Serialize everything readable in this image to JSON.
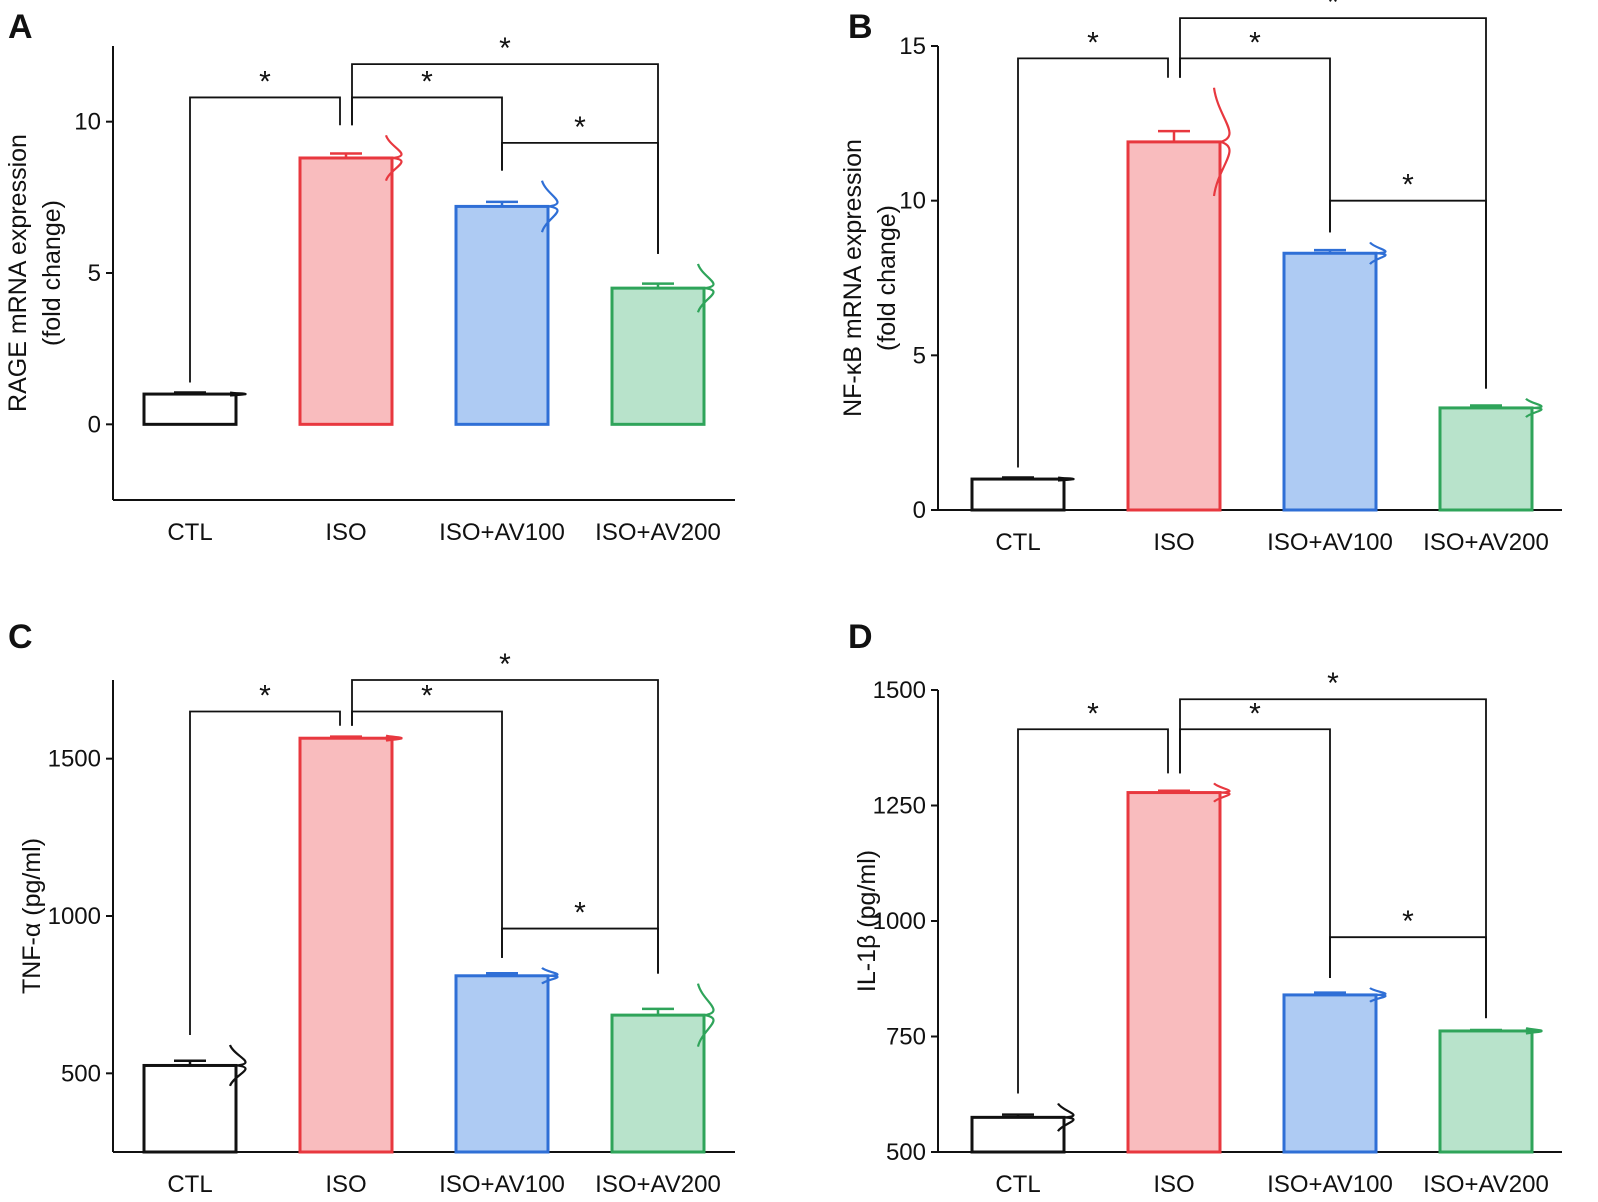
{
  "figure": {
    "colors": {
      "axis": "#111111",
      "series_stroke": [
        "#111111",
        "#e8383f",
        "#2f6fd6",
        "#2fa45a"
      ],
      "series_fill": [
        "#ffffff",
        "#f9bcbe",
        "#aecbf3",
        "#b8e3cb"
      ]
    }
  },
  "chart_data": [
    {
      "type": "bar",
      "panel": "A",
      "categories": [
        "CTL",
        "ISO",
        "ISO+AV100",
        "ISO+AV200"
      ],
      "values": [
        1.0,
        8.8,
        7.2,
        4.5
      ],
      "errors": [
        0.05,
        0.15,
        0.15,
        0.15
      ],
      "dist_halfwidth": [
        0.05,
        0.75,
        0.85,
        0.8
      ],
      "ylabel_line1": "RAGE mRNA expression",
      "ylabel_line2": "(fold change)",
      "ylim": [
        -2.5,
        12.5
      ],
      "yticks": [
        0,
        5,
        10
      ],
      "ytick_labels": [
        "0",
        "5",
        "10"
      ],
      "significance": [
        {
          "from": 0,
          "to": 1,
          "level": 10.8,
          "label": "*"
        },
        {
          "from": 1,
          "to": 2,
          "level": 10.8,
          "label": "*"
        },
        {
          "from": 1,
          "to": 3,
          "level": 11.9,
          "label": "*"
        },
        {
          "from": 2,
          "to": 3,
          "level": 9.3,
          "label": "*"
        }
      ]
    },
    {
      "type": "bar",
      "panel": "B",
      "categories": [
        "CTL",
        "ISO",
        "ISO+AV100",
        "ISO+AV200"
      ],
      "values": [
        1.0,
        11.9,
        8.3,
        3.3
      ],
      "errors": [
        0.05,
        0.35,
        0.1,
        0.08
      ],
      "dist_halfwidth": [
        0.05,
        1.75,
        0.35,
        0.3
      ],
      "ylabel_line1": "NF-κB mRNA expression",
      "ylabel_line2": "(fold change)",
      "ylim": [
        0,
        15
      ],
      "yticks": [
        0,
        5,
        10,
        15
      ],
      "ytick_labels": [
        "0",
        "5",
        "10",
        "15"
      ],
      "significance": [
        {
          "from": 0,
          "to": 1,
          "level": 14.6,
          "label": "*"
        },
        {
          "from": 1,
          "to": 2,
          "level": 14.6,
          "label": "*"
        },
        {
          "from": 1,
          "to": 3,
          "level": 15.9,
          "label": "*"
        },
        {
          "from": 2,
          "to": 3,
          "level": 10.0,
          "label": "*"
        }
      ]
    },
    {
      "type": "bar",
      "panel": "C",
      "categories": [
        "CTL",
        "ISO",
        "ISO+AV100",
        "ISO+AV200"
      ],
      "values": [
        525,
        1565,
        810,
        685
      ],
      "errors": [
        15,
        5,
        8,
        20
      ],
      "dist_halfwidth": [
        65,
        8,
        25,
        100
      ],
      "ylabel_line1": "TNF-α (pg/ml)",
      "ylabel_line2": "",
      "ylim": [
        250,
        1750
      ],
      "yticks": [
        500,
        1000,
        1500
      ],
      "ytick_labels": [
        "500",
        "1000",
        "1500"
      ],
      "significance": [
        {
          "from": 0,
          "to": 1,
          "level": 1650,
          "label": "*"
        },
        {
          "from": 1,
          "to": 2,
          "level": 1650,
          "label": "*"
        },
        {
          "from": 1,
          "to": 3,
          "level": 1750,
          "label": "*"
        },
        {
          "from": 2,
          "to": 3,
          "level": 960,
          "label": "*"
        }
      ]
    },
    {
      "type": "bar",
      "panel": "D",
      "categories": [
        "CTL",
        "ISO",
        "ISO+AV100",
        "ISO+AV200"
      ],
      "values": [
        575,
        1278,
        840,
        762
      ],
      "errors": [
        6,
        4,
        5,
        2
      ],
      "dist_halfwidth": [
        30,
        20,
        15,
        6
      ],
      "ylabel_line1": "IL-1β (pg/ml)",
      "ylabel_line2": "",
      "ylim": [
        500,
        1500
      ],
      "yticks": [
        500,
        750,
        1000,
        1250,
        1500
      ],
      "ytick_labels": [
        "500",
        "750",
        "1000",
        "1250",
        "1500"
      ],
      "significance": [
        {
          "from": 0,
          "to": 1,
          "level": 1415,
          "label": "*"
        },
        {
          "from": 1,
          "to": 2,
          "level": 1415,
          "label": "*"
        },
        {
          "from": 1,
          "to": 3,
          "level": 1480,
          "label": "*"
        },
        {
          "from": 2,
          "to": 3,
          "level": 965,
          "label": "*"
        }
      ]
    }
  ]
}
